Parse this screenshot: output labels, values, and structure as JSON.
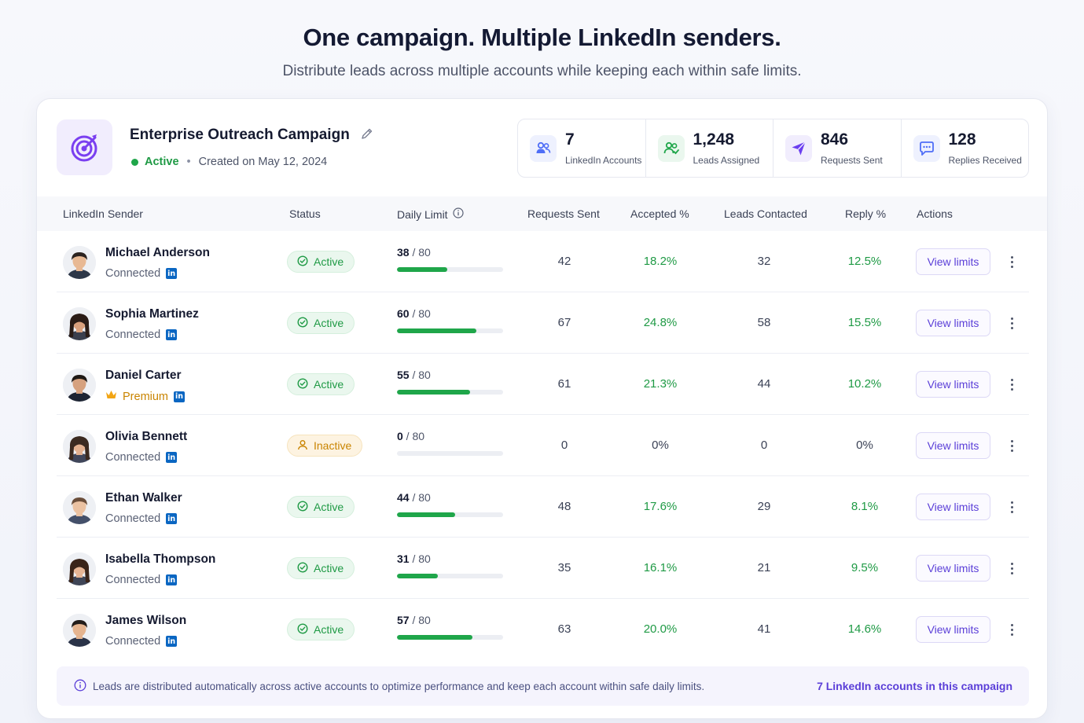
{
  "hero": {
    "title": "One campaign. Multiple LinkedIn senders.",
    "subtitle": "Distribute leads across multiple accounts while keeping each within safe limits."
  },
  "campaign": {
    "icon": "target-icon",
    "name": "Enterprise Outreach Campaign",
    "status": "Active",
    "created": "Created on May 12, 2024",
    "edit_icon": "pencil-icon"
  },
  "stats": [
    {
      "value": "7",
      "label": "LinkedIn Accounts",
      "icon": "users-icon",
      "color": "#4f6ef7"
    },
    {
      "value": "1,248",
      "label": "Leads Assigned",
      "icon": "users-check-icon",
      "color": "#1fa64a"
    },
    {
      "value": "846",
      "label": "Requests Sent",
      "icon": "send-icon",
      "color": "#6b3ff0"
    },
    {
      "value": "128",
      "label": "Replies Received",
      "icon": "chat-icon",
      "color": "#4f6ef7"
    }
  ],
  "table": {
    "headers": {
      "sender": "LinkedIn Sender",
      "status": "Status",
      "daily": "Daily Limit",
      "requests": "Requests Sent",
      "accepted": "Accepted %",
      "leads": "Leads Contacted",
      "reply": "Reply %",
      "actions": "Actions"
    },
    "action_label": "View limits",
    "rows": [
      {
        "name": "Michael Anderson",
        "sub": "Connected",
        "premium": false,
        "status": "Active",
        "active": true,
        "used": 38,
        "limit": "80",
        "requests": "42",
        "accepted": "18.2%",
        "leads": "32",
        "reply": "12.5%",
        "skin": "#e8b994",
        "hair": "#2b2320",
        "shirt": "#2d3748",
        "long": false
      },
      {
        "name": "Sophia Martinez",
        "sub": "Connected",
        "premium": false,
        "status": "Active",
        "active": true,
        "used": 60,
        "limit": "80",
        "requests": "67",
        "accepted": "24.8%",
        "leads": "58",
        "reply": "15.5%",
        "skin": "#d9a07c",
        "hair": "#2a1c16",
        "shirt": "#3a3f4d",
        "long": true
      },
      {
        "name": "Daniel Carter",
        "sub": "Premium",
        "premium": true,
        "status": "Active",
        "active": true,
        "used": 55,
        "limit": "80",
        "requests": "61",
        "accepted": "21.3%",
        "leads": "44",
        "reply": "10.2%",
        "skin": "#d6a17e",
        "hair": "#1f1915",
        "shirt": "#1d2433",
        "long": false
      },
      {
        "name": "Olivia Bennett",
        "sub": "Connected",
        "premium": false,
        "status": "Inactive",
        "active": false,
        "used": 0,
        "limit": "80",
        "requests": "0",
        "accepted": "0%",
        "leads": "0",
        "reply": "0%",
        "skin": "#e3b190",
        "hair": "#3b2a20",
        "shirt": "#40465a",
        "long": true
      },
      {
        "name": "Ethan Walker",
        "sub": "Connected",
        "premium": false,
        "status": "Active",
        "active": true,
        "used": 44,
        "limit": "80",
        "requests": "48",
        "accepted": "17.6%",
        "leads": "29",
        "reply": "8.1%",
        "skin": "#ebc2a2",
        "hair": "#6b4e3a",
        "shirt": "#44506a",
        "long": false
      },
      {
        "name": "Isabella Thompson",
        "sub": "Connected",
        "premium": false,
        "status": "Active",
        "active": true,
        "used": 31,
        "limit": "80",
        "requests": "35",
        "accepted": "16.1%",
        "leads": "21",
        "reply": "9.5%",
        "skin": "#e6b595",
        "hair": "#3a2419",
        "shirt": "#3f4556",
        "long": true
      },
      {
        "name": "James Wilson",
        "sub": "Connected",
        "premium": false,
        "status": "Active",
        "active": true,
        "used": 57,
        "limit": "80",
        "requests": "63",
        "accepted": "20.0%",
        "leads": "41",
        "reply": "14.6%",
        "skin": "#e5b48f",
        "hair": "#231d1a",
        "shirt": "#2a3348",
        "long": false
      }
    ]
  },
  "footer": {
    "message": "Leads are distributed automatically across active accounts to optimize performance and keep each account within safe daily limits.",
    "link": "7 LinkedIn accounts in this campaign"
  },
  "colors": {
    "accent": "#5b3fd8",
    "green": "#1fa64a",
    "amber": "#c98400",
    "linkedin": "#0a66c2"
  }
}
